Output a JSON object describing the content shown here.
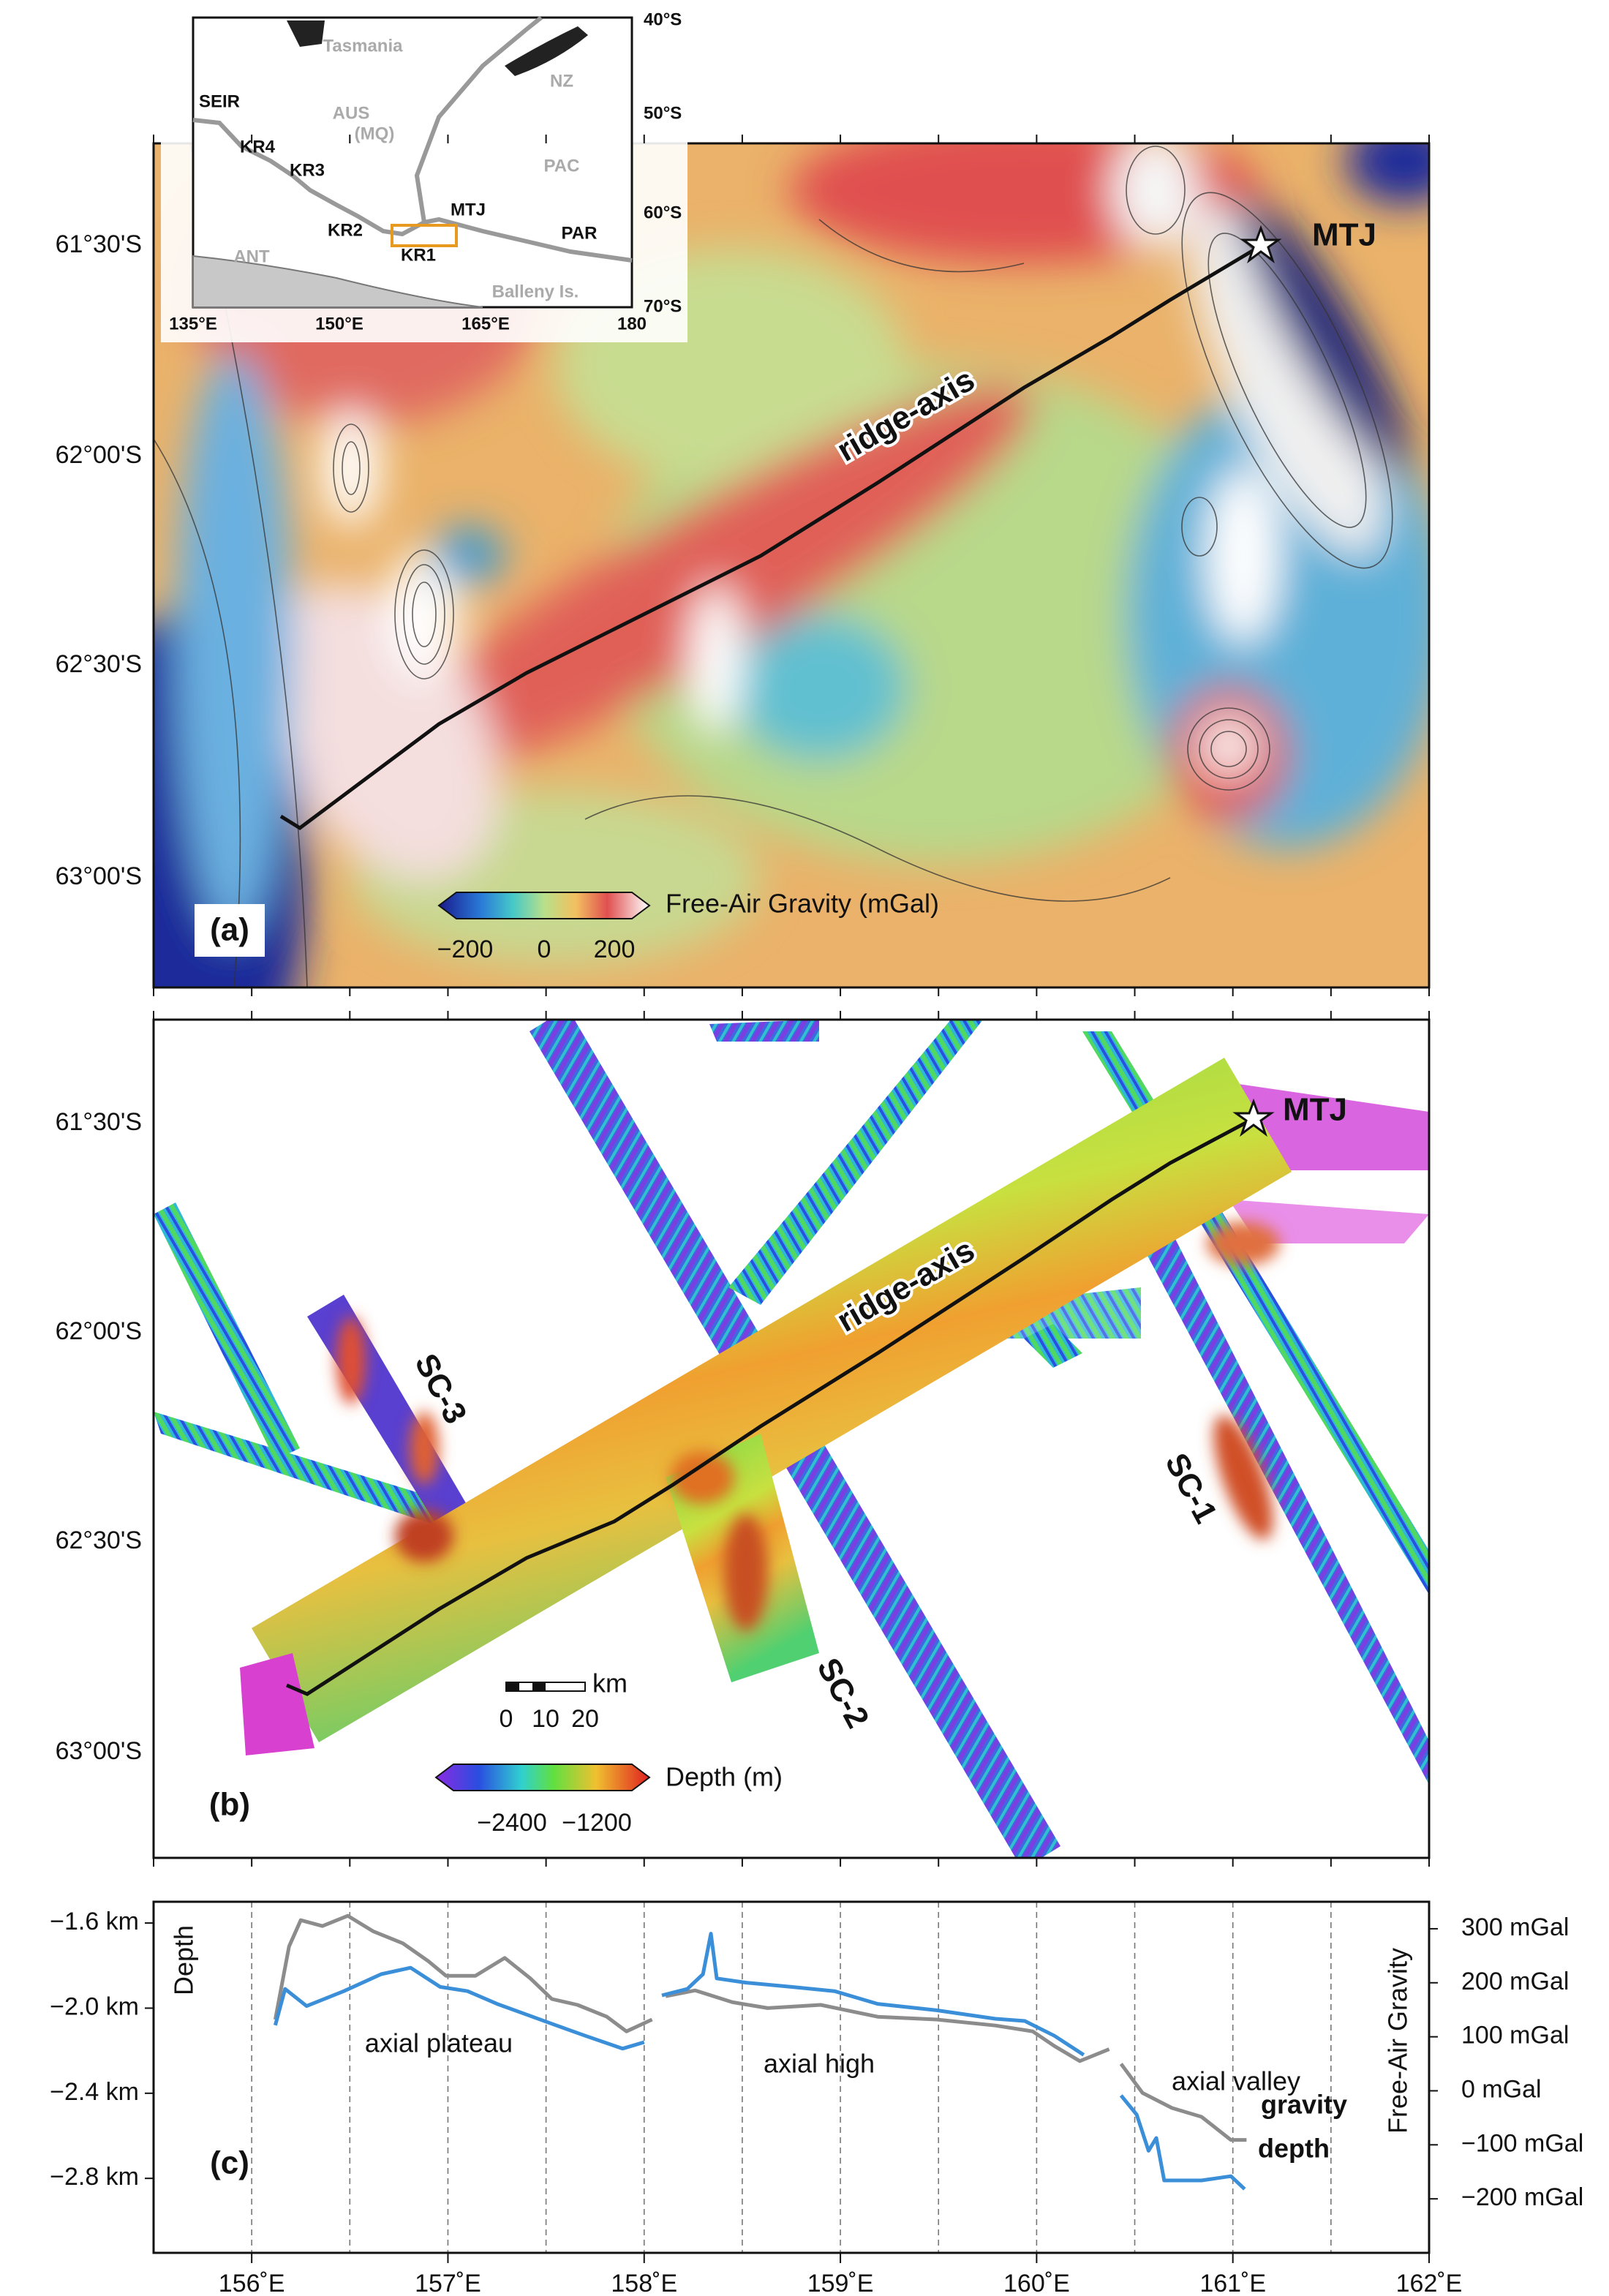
{
  "inset": {
    "labels": [
      "Tasmania",
      "NZ",
      "AUS",
      "(MQ)",
      "PAC",
      "SEIR",
      "KR4",
      "KR3",
      "KR2",
      "KR1",
      "MTJ",
      "PAR",
      "ANT",
      "Balleny Is."
    ],
    "lon_labels": [
      "135°E",
      "150°E",
      "165°E",
      "180"
    ],
    "lat_labels": [
      "40°S",
      "50°S",
      "60°S",
      "70°S"
    ]
  },
  "panel_a": {
    "label": "(a)",
    "lat_labels": [
      "61°30'S",
      "62°00'S",
      "62°30'S",
      "63°00'S"
    ],
    "ridge": "ridge-axis",
    "mtj": "MTJ",
    "colorbar": {
      "title": "Free-Air Gravity (mGal)",
      "labels": [
        "−200",
        "0",
        "200"
      ]
    }
  },
  "panel_b": {
    "label": "(b)",
    "lat_labels": [
      "61°30'S",
      "62°00'S",
      "62°30'S",
      "63°00'S"
    ],
    "ridge": "ridge-axis",
    "mtj": "MTJ",
    "seamount_chains": [
      "SC-3",
      "SC-2",
      "SC-1"
    ],
    "scalebar": {
      "labels": [
        "0",
        "10",
        "20"
      ],
      "unit": "km"
    },
    "colorbar": {
      "title": "Depth (m)",
      "labels": [
        "−2400",
        "−1200"
      ]
    }
  },
  "chart_data": {
    "type": "line",
    "panel_label": "(c)",
    "ylabel": "Depth",
    "y2label": "Free-Air Gravity",
    "annotations": [
      "axial plateau",
      "axial high",
      "axial valley"
    ],
    "xlim": [
      155.5,
      162
    ],
    "xticks": [
      {
        "value": 156,
        "label": "156˚E"
      },
      {
        "value": 157,
        "label": "157˚E"
      },
      {
        "value": 158,
        "label": "158˚E"
      },
      {
        "value": 159,
        "label": "159˚E"
      },
      {
        "value": 160,
        "label": "160˚E"
      },
      {
        "value": 161,
        "label": "161˚E"
      },
      {
        "value": 162,
        "label": "162˚E"
      }
    ],
    "xgrid": [
      156,
      156.5,
      157,
      157.5,
      158,
      158.5,
      159,
      159.5,
      160,
      160.5,
      161,
      161.5
    ],
    "ylim": [
      -3.15,
      -1.5
    ],
    "yticks": [
      {
        "value": -1.6,
        "label": "−1.6 km"
      },
      {
        "value": -2.0,
        "label": "−2.0 km"
      },
      {
        "value": -2.4,
        "label": "−2.4 km"
      },
      {
        "value": -2.8,
        "label": "−2.8 km"
      }
    ],
    "y2lim": [
      -300,
      350
    ],
    "y2ticks": [
      {
        "value": 300,
        "label": "300 mGal"
      },
      {
        "value": 200,
        "label": "200 mGal"
      },
      {
        "value": 100,
        "label": "100 mGal"
      },
      {
        "value": 0,
        "label": "0 mGal"
      },
      {
        "value": -100,
        "label": "−100 mGal"
      },
      {
        "value": -200,
        "label": "−200 mGal"
      }
    ],
    "series": [
      {
        "name": "gravity",
        "color": "#8c8c8c",
        "axis": "y2",
        "x": [
          156.12,
          156.19,
          156.25,
          156.36,
          156.49,
          156.62,
          156.77,
          156.9,
          156.99,
          157.14,
          157.29,
          157.42,
          157.53,
          157.66,
          157.81,
          157.91,
          158.04,
          158.07,
          158.11,
          158.26,
          158.45,
          158.63,
          158.9,
          159.19,
          159.49,
          159.79,
          159.98,
          160.09,
          160.22,
          160.37,
          160.4,
          160.43,
          160.54,
          160.69,
          160.84,
          160.99,
          161.07
        ],
        "values": [
          132,
          267,
          316,
          305,
          324,
          295,
          273,
          240,
          213,
          213,
          246,
          208,
          170,
          159,
          137,
          110,
          132,
          null,
          175,
          186,
          164,
          153,
          159,
          137,
          132,
          121,
          110,
          83,
          55,
          77,
          null,
          50,
          -4,
          -32,
          -48,
          -91,
          -91
        ]
      },
      {
        "name": "depth",
        "color": "#3a8fd8",
        "x": [
          156.12,
          156.17,
          156.28,
          156.47,
          156.66,
          156.81,
          156.96,
          157.1,
          157.25,
          157.4,
          157.55,
          157.7,
          157.89,
          158.0,
          158.05,
          158.09,
          158.22,
          158.3,
          158.34,
          158.37,
          158.52,
          158.75,
          158.97,
          159.19,
          159.49,
          159.79,
          159.94,
          160.09,
          160.24,
          160.35,
          160.43,
          160.51,
          160.57,
          160.61,
          160.65,
          160.84,
          160.99,
          161.06
        ],
        "values": [
          -2.08,
          -1.91,
          -1.99,
          -1.92,
          -1.84,
          -1.81,
          -1.9,
          -1.92,
          -1.98,
          -2.03,
          -2.08,
          -2.13,
          -2.19,
          -2.16,
          null,
          -1.94,
          -1.91,
          -1.84,
          -1.65,
          -1.86,
          -1.88,
          -1.9,
          -1.92,
          -1.98,
          -2.01,
          -2.05,
          -2.06,
          -2.13,
          -2.22,
          null,
          -2.41,
          -2.5,
          -2.67,
          -2.61,
          -2.81,
          -2.81,
          -2.79,
          -2.85
        ]
      }
    ]
  }
}
